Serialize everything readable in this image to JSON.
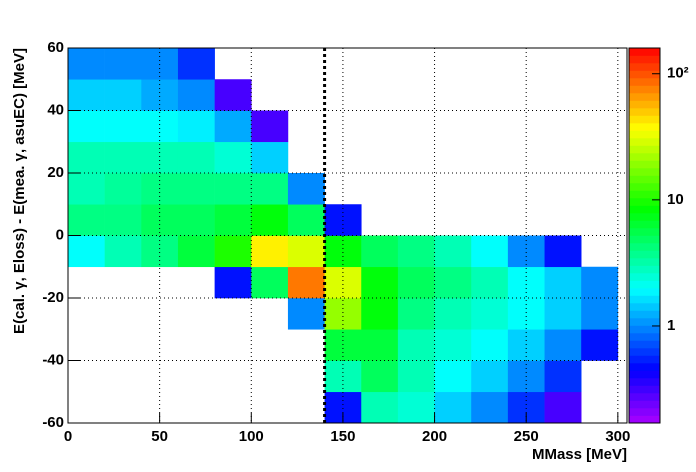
{
  "chart_data": {
    "type": "heatmap",
    "x_label": "MMass [MeV]",
    "y_label": "E(cal. γ, Eloss) - E(mea.  γ, asuEC) [MeV]",
    "x_bins": [
      0,
      20,
      40,
      60,
      80,
      100,
      120,
      140,
      160,
      180,
      200,
      220,
      240,
      260,
      280,
      300
    ],
    "y_bins": [
      -60,
      -50,
      -40,
      -30,
      -20,
      -10,
      0,
      10,
      20,
      30,
      40,
      50,
      60
    ],
    "values": [
      [
        null,
        null,
        null,
        null,
        null,
        null,
        null,
        0.5,
        3,
        2.5,
        1.5,
        1,
        0.6,
        0.3,
        null
      ],
      [
        null,
        null,
        null,
        null,
        null,
        null,
        null,
        3,
        5,
        3,
        2,
        1.5,
        1,
        0.6,
        null
      ],
      [
        null,
        null,
        null,
        null,
        null,
        null,
        null,
        6,
        6,
        3,
        2.5,
        2,
        1.5,
        1,
        0.5
      ],
      [
        null,
        null,
        null,
        null,
        null,
        null,
        1,
        20,
        8,
        4,
        3,
        2.5,
        2,
        1.5,
        1
      ],
      [
        null,
        null,
        null,
        null,
        0.5,
        5,
        80,
        30,
        8,
        5,
        4,
        3,
        2,
        1.5,
        1
      ],
      [
        2,
        3,
        4,
        6,
        10,
        40,
        30,
        8,
        5,
        4,
        3,
        2,
        1,
        0.5,
        null
      ],
      [
        4,
        4,
        5,
        5,
        6,
        8,
        5,
        0.5,
        null,
        null,
        null,
        null,
        null,
        null,
        null
      ],
      [
        3,
        3.5,
        4,
        4,
        4,
        4,
        1,
        null,
        null,
        null,
        null,
        null,
        null,
        null,
        null
      ],
      [
        3,
        3,
        3,
        3,
        2.5,
        1.5,
        null,
        null,
        null,
        null,
        null,
        null,
        null,
        null,
        null
      ],
      [
        2,
        2,
        2,
        1.8,
        1.2,
        0.3,
        null,
        null,
        null,
        null,
        null,
        null,
        null,
        null,
        null
      ],
      [
        1.5,
        1.5,
        1.2,
        1,
        0.3,
        null,
        null,
        null,
        null,
        null,
        null,
        null,
        null,
        null,
        null
      ],
      [
        1,
        1,
        1,
        0.6,
        null,
        null,
        null,
        null,
        null,
        null,
        null,
        null,
        null,
        null,
        null
      ]
    ],
    "xlim": [
      0,
      305
    ],
    "ylim": [
      -60,
      60
    ],
    "xticks": [
      0,
      50,
      100,
      150,
      200,
      250,
      300
    ],
    "yticks": [
      -60,
      -40,
      -20,
      0,
      20,
      40,
      60
    ],
    "zlim": [
      0.17,
      160
    ],
    "zticks": [
      1,
      10,
      {
        "value": 100,
        "label": "10²"
      }
    ],
    "log_z": true,
    "grid": true,
    "vline": 140
  }
}
